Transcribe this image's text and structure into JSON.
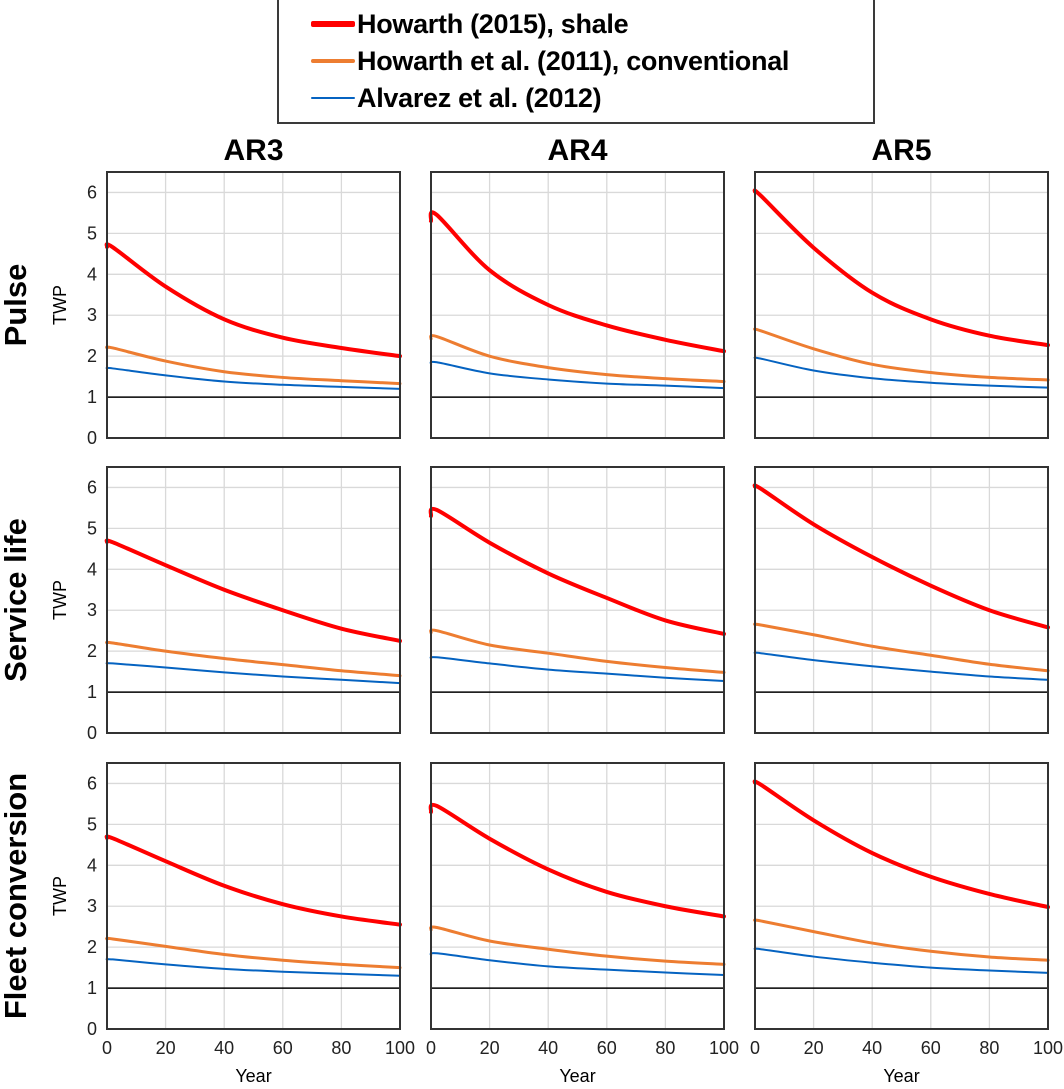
{
  "chart_data": {
    "type": "line",
    "layout": "3x3 small multiples",
    "legend": {
      "placement": "top-center",
      "entries": [
        {
          "name": "Howarth (2015), shale",
          "color": "#ff0000",
          "weight": "thick"
        },
        {
          "name": "Howarth et al. (2011), conventional",
          "color": "#ed7d31",
          "weight": "medium"
        },
        {
          "name": "Alvarez et al. (2012)",
          "color": "#0563c1",
          "weight": "thin"
        }
      ]
    },
    "columns": [
      "AR3",
      "AR4",
      "AR5"
    ],
    "rows": [
      "Pulse",
      "Service life",
      "Fleet conversion"
    ],
    "xlabel": "Year",
    "ylabel": "TWP",
    "xlim": [
      0,
      100
    ],
    "ylim": [
      0,
      6.5
    ],
    "xticks": [
      0,
      20,
      40,
      60,
      80,
      100
    ],
    "yticks": [
      0,
      1,
      2,
      3,
      4,
      5,
      6
    ],
    "reference_line": {
      "y": 1,
      "color": "#000000"
    },
    "grid": true,
    "x": [
      0,
      2,
      20,
      40,
      60,
      80,
      100
    ],
    "panels": [
      {
        "row": "Pulse",
        "column": "AR3",
        "series": [
          {
            "name": "Howarth (2015), shale",
            "values": [
              4.67,
              4.66,
              3.7,
              2.9,
              2.45,
              2.2,
              2.0
            ]
          },
          {
            "name": "Howarth et al. (2011), conventional",
            "values": [
              2.2,
              2.2,
              1.88,
              1.62,
              1.48,
              1.4,
              1.33
            ]
          },
          {
            "name": "Alvarez et al. (2012)",
            "values": [
              1.7,
              1.7,
              1.53,
              1.38,
              1.3,
              1.25,
              1.2
            ]
          }
        ]
      },
      {
        "row": "Pulse",
        "column": "AR4",
        "series": [
          {
            "name": "Howarth (2015), shale",
            "values": [
              5.3,
              5.45,
              4.1,
              3.25,
              2.75,
              2.4,
              2.12
            ]
          },
          {
            "name": "Howarth et al. (2011), conventional",
            "values": [
              2.42,
              2.48,
              2.0,
              1.72,
              1.55,
              1.45,
              1.38
            ]
          },
          {
            "name": "Alvarez et al. (2012)",
            "values": [
              1.8,
              1.85,
              1.58,
              1.43,
              1.33,
              1.28,
              1.22
            ]
          }
        ]
      },
      {
        "row": "Pulse",
        "column": "AR5",
        "series": [
          {
            "name": "Howarth (2015), shale",
            "values": [
              6.02,
              5.92,
              4.65,
              3.55,
              2.9,
              2.5,
              2.27
            ]
          },
          {
            "name": "Howarth et al. (2011), conventional",
            "values": [
              2.65,
              2.62,
              2.18,
              1.8,
              1.6,
              1.48,
              1.42
            ]
          },
          {
            "name": "Alvarez et al. (2012)",
            "values": [
              1.95,
              1.94,
              1.65,
              1.46,
              1.35,
              1.28,
              1.23
            ]
          }
        ]
      },
      {
        "row": "Service life",
        "column": "AR3",
        "series": [
          {
            "name": "Howarth (2015), shale",
            "values": [
              4.67,
              4.66,
              4.1,
              3.5,
              3.0,
              2.55,
              2.25
            ]
          },
          {
            "name": "Howarth et al. (2011), conventional",
            "values": [
              2.2,
              2.2,
              2.0,
              1.82,
              1.67,
              1.52,
              1.4
            ]
          },
          {
            "name": "Alvarez et al. (2012)",
            "values": [
              1.7,
              1.7,
              1.6,
              1.48,
              1.38,
              1.3,
              1.22
            ]
          }
        ]
      },
      {
        "row": "Service life",
        "column": "AR4",
        "series": [
          {
            "name": "Howarth (2015), shale",
            "values": [
              5.3,
              5.45,
              4.65,
              3.9,
              3.3,
              2.75,
              2.42
            ]
          },
          {
            "name": "Howarth et al. (2011), conventional",
            "values": [
              2.45,
              2.5,
              2.15,
              1.95,
              1.75,
              1.6,
              1.48
            ]
          },
          {
            "name": "Alvarez et al. (2012)",
            "values": [
              1.82,
              1.85,
              1.7,
              1.55,
              1.45,
              1.35,
              1.27
            ]
          }
        ]
      },
      {
        "row": "Service life",
        "column": "AR5",
        "series": [
          {
            "name": "Howarth (2015), shale",
            "values": [
              6.02,
              5.97,
              5.1,
              4.3,
              3.6,
              3.0,
              2.58
            ]
          },
          {
            "name": "Howarth et al. (2011), conventional",
            "values": [
              2.65,
              2.64,
              2.4,
              2.12,
              1.9,
              1.68,
              1.52
            ]
          },
          {
            "name": "Alvarez et al. (2012)",
            "values": [
              1.95,
              1.95,
              1.78,
              1.63,
              1.5,
              1.38,
              1.3
            ]
          }
        ]
      },
      {
        "row": "Fleet conversion",
        "column": "AR3",
        "series": [
          {
            "name": "Howarth (2015), shale",
            "values": [
              4.67,
              4.66,
              4.1,
              3.5,
              3.05,
              2.75,
              2.55
            ]
          },
          {
            "name": "Howarth et al. (2011), conventional",
            "values": [
              2.2,
              2.2,
              2.02,
              1.82,
              1.68,
              1.58,
              1.5
            ]
          },
          {
            "name": "Alvarez et al. (2012)",
            "values": [
              1.7,
              1.7,
              1.58,
              1.47,
              1.4,
              1.35,
              1.3
            ]
          }
        ]
      },
      {
        "row": "Fleet conversion",
        "column": "AR4",
        "series": [
          {
            "name": "Howarth (2015), shale",
            "values": [
              5.3,
              5.45,
              4.65,
              3.9,
              3.35,
              3.0,
              2.75
            ]
          },
          {
            "name": "Howarth et al. (2011), conventional",
            "values": [
              2.42,
              2.48,
              2.15,
              1.95,
              1.78,
              1.66,
              1.58
            ]
          },
          {
            "name": "Alvarez et al. (2012)",
            "values": [
              1.8,
              1.85,
              1.68,
              1.53,
              1.45,
              1.38,
              1.32
            ]
          }
        ]
      },
      {
        "row": "Fleet conversion",
        "column": "AR5",
        "series": [
          {
            "name": "Howarth (2015), shale",
            "values": [
              6.02,
              5.97,
              5.1,
              4.3,
              3.72,
              3.3,
              2.98
            ]
          },
          {
            "name": "Howarth et al. (2011), conventional",
            "values": [
              2.65,
              2.64,
              2.38,
              2.1,
              1.9,
              1.76,
              1.68
            ]
          },
          {
            "name": "Alvarez et al. (2012)",
            "values": [
              1.95,
              1.95,
              1.77,
              1.62,
              1.5,
              1.43,
              1.37
            ]
          }
        ]
      }
    ]
  }
}
